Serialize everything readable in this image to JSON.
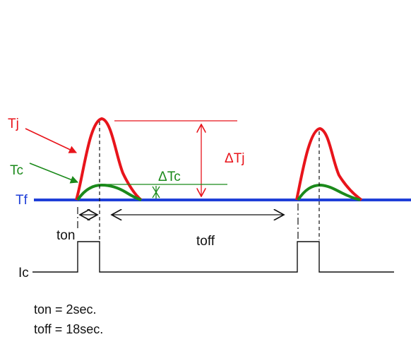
{
  "labels": {
    "tj": "Tj",
    "tc": "Tc",
    "tf": "Tf",
    "delta_tj": "ΔTj",
    "delta_tc": "ΔTc",
    "ton": "ton",
    "toff": "toff",
    "ic": "Ic"
  },
  "notes": {
    "ton": "ton = 2sec.",
    "toff": "toff = 18sec."
  },
  "colors": {
    "tj_curve": "#e8141b",
    "tc_curve": "#1b8a1b",
    "tf_baseline": "#1f3fd8",
    "ic_trace": "#111111"
  }
}
